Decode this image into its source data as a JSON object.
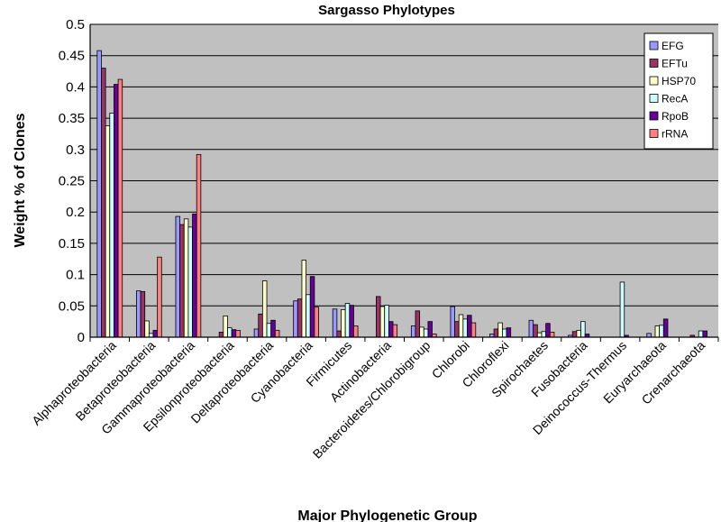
{
  "chart_data": {
    "type": "bar",
    "title": "Sargasso Phylotypes",
    "xlabel": "Major Phylogenetic Group",
    "ylabel": "Weight % of Clones",
    "ylim": [
      0,
      0.5
    ],
    "yticks": [
      "0",
      "0.05",
      "0.1",
      "0.15",
      "0.2",
      "0.25",
      "0.3",
      "0.35",
      "0.4",
      "0.45",
      "0.5"
    ],
    "grid": "horizontal",
    "legend_position": "top-right",
    "background": "#c0c0c0",
    "categories": [
      "Alphaproteobacteria",
      "Betaproteobacteria",
      "Gammaproteobacteria",
      "Epsilonproteobacteria",
      "Deltaproteobacteria",
      "Cyanobacteria",
      "Firmicutes",
      "Actinobacteria",
      "Bacteroidetes/Chlorobigroup",
      "Chlorobi",
      "Chloroflexi",
      "Spirochaetes",
      "Fusobacteria",
      "Deinococcus-Thermus",
      "Euryarchaeota",
      "Crenarchaeota"
    ],
    "series": [
      {
        "name": "EFG",
        "color": "#9999ff",
        "values": [
          0.458,
          0.074,
          0.193,
          0.0,
          0.013,
          0.058,
          0.045,
          0.0,
          0.018,
          0.049,
          0.005,
          0.027,
          0.003,
          0.0,
          0.006,
          0.0
        ]
      },
      {
        "name": "EFTu",
        "color": "#993366",
        "values": [
          0.43,
          0.073,
          0.18,
          0.008,
          0.037,
          0.061,
          0.01,
          0.065,
          0.042,
          0.025,
          0.013,
          0.02,
          0.009,
          0.0,
          0.0,
          0.003
        ]
      },
      {
        "name": "HSP70",
        "color": "#ffffcc",
        "values": [
          0.338,
          0.026,
          0.189,
          0.034,
          0.09,
          0.123,
          0.044,
          0.049,
          0.016,
          0.036,
          0.023,
          0.007,
          0.011,
          0.0,
          0.018,
          0.0
        ]
      },
      {
        "name": "RecA",
        "color": "#ccffff",
        "values": [
          0.358,
          0.006,
          0.176,
          0.015,
          0.022,
          0.068,
          0.054,
          0.051,
          0.013,
          0.029,
          0.013,
          0.009,
          0.025,
          0.088,
          0.019,
          0.01
        ]
      },
      {
        "name": "RpoB",
        "color": "#660099",
        "values": [
          0.404,
          0.011,
          0.197,
          0.012,
          0.027,
          0.097,
          0.051,
          0.025,
          0.025,
          0.035,
          0.015,
          0.022,
          0.005,
          0.003,
          0.029,
          0.01
        ]
      },
      {
        "name": "rRNA",
        "color": "#ff8080",
        "values": [
          0.412,
          0.128,
          0.292,
          0.011,
          0.011,
          0.048,
          0.018,
          0.02,
          0.005,
          0.023,
          0.0,
          0.008,
          0.0,
          0.0,
          0.0,
          0.0
        ]
      }
    ]
  }
}
